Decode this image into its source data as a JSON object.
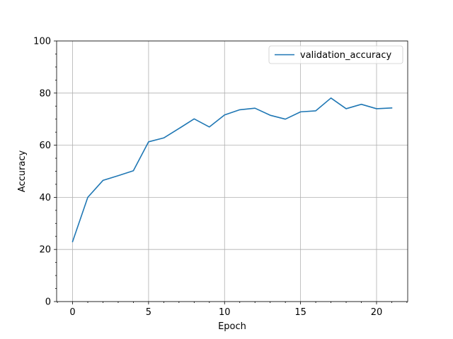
{
  "chart_data": {
    "type": "line",
    "title": "",
    "xlabel": "Epoch",
    "ylabel": "Accuracy",
    "xlim": [
      -1.05,
      22.05
    ],
    "ylim": [
      0,
      100
    ],
    "xticks": [
      0,
      5,
      10,
      15,
      20
    ],
    "yticks": [
      0,
      20,
      40,
      60,
      80,
      100
    ],
    "grid": true,
    "legend": {
      "position": "upper right"
    },
    "series": [
      {
        "name": "validation_accuracy",
        "color": "#1f77b4",
        "x": [
          0,
          1,
          2,
          3,
          4,
          5,
          6,
          7,
          8,
          9,
          10,
          11,
          12,
          13,
          14,
          15,
          16,
          17,
          18,
          19,
          20,
          21
        ],
        "y": [
          23.0,
          40.0,
          46.5,
          48.3,
          50.2,
          61.3,
          62.8,
          66.4,
          70.1,
          67.0,
          71.6,
          73.6,
          74.2,
          71.5,
          70.0,
          72.8,
          73.2,
          78.1,
          74.0,
          75.7,
          74.0,
          74.3
        ]
      }
    ]
  }
}
